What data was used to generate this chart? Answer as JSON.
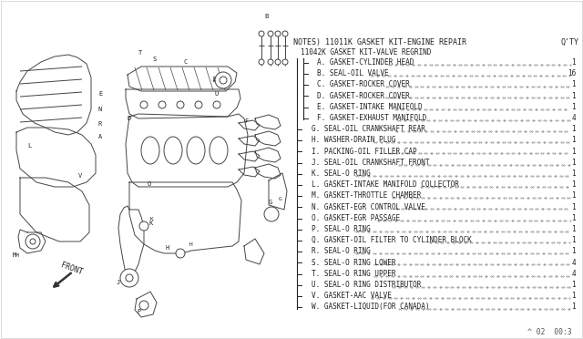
{
  "background_color": "#ffffff",
  "diagram_bg": "#ffffff",
  "notes_header": "NOTES) 11011K GASKET KIT-ENGINE REPAIR",
  "qty_header": "Q'TY",
  "sub_header": "11042K GASKET KIT-VALVE REGRIND",
  "footer": "^ 02  00:3",
  "parts": [
    {
      "id": "A",
      "desc": "GASKET-CYLINDER HEAD",
      "qty": "1",
      "indent": 2
    },
    {
      "id": "B",
      "desc": "SEAL-OIL VALVE",
      "qty": "16",
      "indent": 2
    },
    {
      "id": "C",
      "desc": "GASKET-ROCKER COVER",
      "qty": "1",
      "indent": 2
    },
    {
      "id": "D",
      "desc": "GASKET-ROCKER COVER",
      "qty": "1",
      "indent": 2
    },
    {
      "id": "E",
      "desc": "GASKET-INTAKE MANIFOLD",
      "qty": "1",
      "indent": 2
    },
    {
      "id": "F",
      "desc": "GASKET-EXHAUST MANIFOLD",
      "qty": "4",
      "indent": 2
    },
    {
      "id": "G",
      "desc": "SEAL-OIL CRANKSHAFT REAR",
      "qty": "1",
      "indent": 1
    },
    {
      "id": "H",
      "desc": "WASHER-DRAIN PLUG",
      "qty": "1",
      "indent": 1
    },
    {
      "id": "I",
      "desc": "PACKING-OIL FILLER CAP",
      "qty": "1",
      "indent": 1
    },
    {
      "id": "J",
      "desc": "SEAL-OIL CRANKSHAFT FRONT",
      "qty": "1",
      "indent": 1
    },
    {
      "id": "K",
      "desc": "SEAL-O RING",
      "qty": "1",
      "indent": 1
    },
    {
      "id": "L",
      "desc": "GASKET-INTAKE MANIFOLD COLLECTOR",
      "qty": "1",
      "indent": 1
    },
    {
      "id": "M",
      "desc": "GASKET-THROTTLE CHAMBER",
      "qty": "1",
      "indent": 1
    },
    {
      "id": "N",
      "desc": "GASKET-EGR CONTROL VALVE",
      "qty": "1",
      "indent": 1
    },
    {
      "id": "O",
      "desc": "GASKET-EGR PASSAGE",
      "qty": "1",
      "indent": 1
    },
    {
      "id": "P",
      "desc": "SEAL-O RING",
      "qty": "1",
      "indent": 1
    },
    {
      "id": "Q",
      "desc": "GASKET-OIL FILTER TO CYLINDER BLOCK",
      "qty": "1",
      "indent": 1
    },
    {
      "id": "R",
      "desc": "SEAL-O RING",
      "qty": "1",
      "indent": 1
    },
    {
      "id": "S",
      "desc": "SEAL-O RING LOWER",
      "qty": "4",
      "indent": 1
    },
    {
      "id": "T",
      "desc": "SEAL-O RING UPPER",
      "qty": "4",
      "indent": 1
    },
    {
      "id": "U",
      "desc": "SEAL-O RING DISTRIBUTOR",
      "qty": "1",
      "indent": 1
    },
    {
      "id": "V",
      "desc": "GASKET-AAC VALVE",
      "qty": "1",
      "indent": 1
    },
    {
      "id": "W",
      "desc": "GASKET-LIQUID(FOR CANADA)",
      "qty": "1",
      "indent": 1
    }
  ],
  "line_color": "#444444",
  "text_color": "#222222",
  "dot_color": "#666666"
}
